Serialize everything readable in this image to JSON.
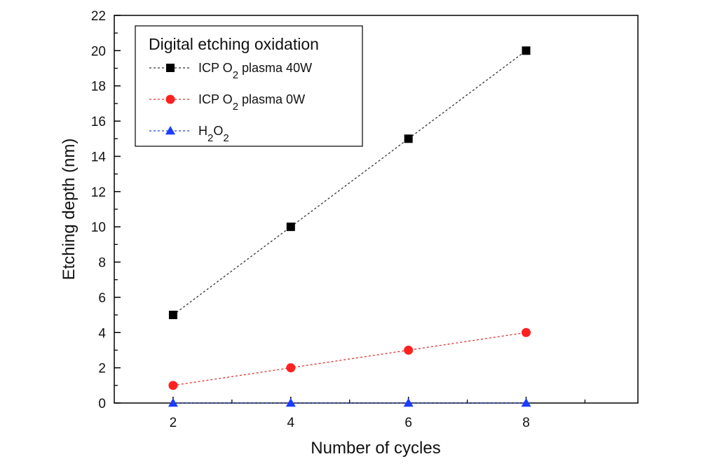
{
  "chart_data": {
    "type": "line",
    "title": "",
    "xlabel": "Number of cycles",
    "ylabel": "Etching depth (nm)",
    "x": [
      2,
      4,
      6,
      8
    ],
    "xlim": [
      1,
      9.9
    ],
    "ylim": [
      0,
      22
    ],
    "xticks": [
      2,
      4,
      6,
      8
    ],
    "yticks": [
      0,
      2,
      4,
      6,
      8,
      10,
      12,
      14,
      16,
      18,
      20,
      22
    ],
    "grid": false,
    "legend": {
      "title": "Digital etching oxidation",
      "placement": "top-left"
    },
    "series": [
      {
        "name": "ICP O2 plasma 40W",
        "label_parts": [
          "ICP O",
          "2",
          " plasma 40W"
        ],
        "marker": "square",
        "color": "#000000",
        "line_color": "#333333",
        "values": [
          5,
          10,
          15,
          20
        ]
      },
      {
        "name": "ICP O2 plasma 0W",
        "label_parts": [
          "ICP O",
          "2",
          " plasma 0W"
        ],
        "marker": "circle",
        "color": "#ff2020",
        "line_color": "#e03030",
        "values": [
          1,
          2,
          3,
          4
        ]
      },
      {
        "name": "H2O2",
        "label_parts": [
          "H",
          "2",
          "O",
          "2"
        ],
        "marker": "triangle",
        "color": "#1a3cff",
        "line_color": "#2040d0",
        "values": [
          0,
          0,
          0,
          0
        ]
      }
    ]
  }
}
